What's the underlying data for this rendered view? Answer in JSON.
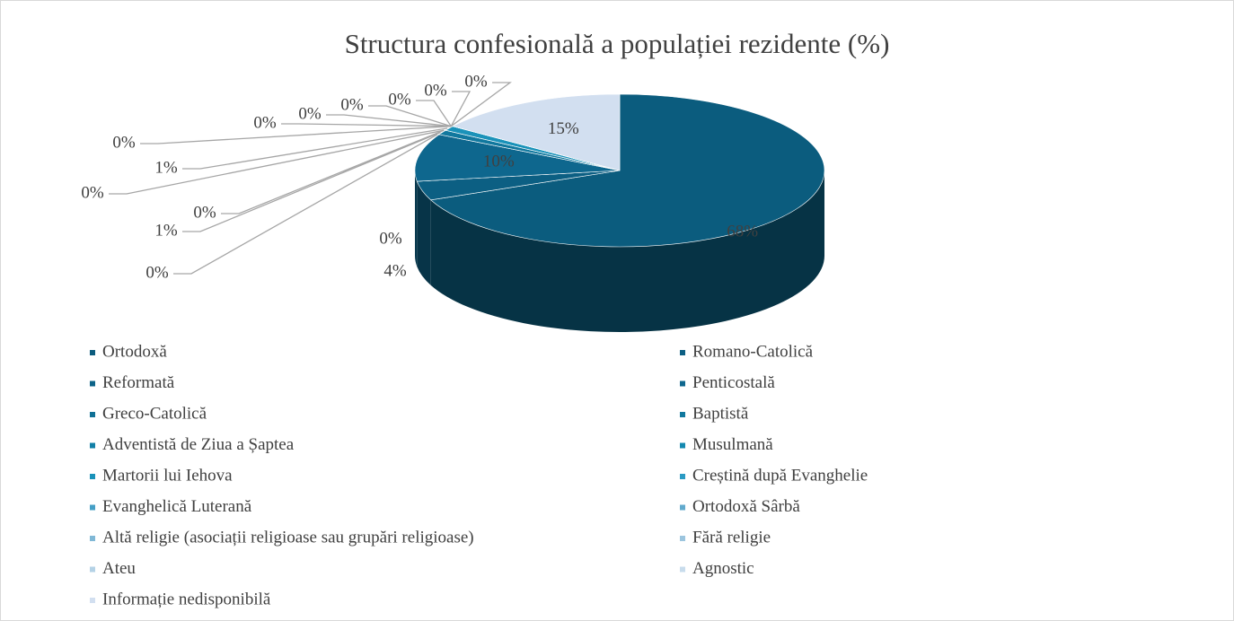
{
  "chart_data": {
    "type": "pie3d",
    "title": "Structura confesională a populației rezidente (%)",
    "categories": [
      "Ortodoxă",
      "Romano-Catolică",
      "Reformată",
      "Penticostală",
      "Greco-Catolică",
      "Baptistă",
      "Adventistă de Ziua a Șaptea",
      "Musulmană",
      "Martorii lui Iehova",
      "Creștină după Evanghelie",
      "Evanghelică Luterană",
      "Ortodoxă Sârbă",
      "Altă religie (asociații religioase sau grupări religioase)",
      "Fără religie",
      "Ateu",
      "Agnostic",
      "Informație nedisponibilă"
    ],
    "values": [
      68,
      4,
      0,
      10,
      0,
      1,
      0,
      0,
      1,
      0,
      0,
      0,
      0,
      0,
      0,
      0,
      15
    ],
    "value_labels": [
      "68%",
      "4%",
      "0%",
      "10%",
      "0%",
      "1%",
      "0%",
      "0%",
      "1%",
      "0%",
      "0%",
      "0%",
      "0%",
      "0%",
      "0%",
      "0%",
      "15%"
    ],
    "colors": [
      "#0b5c7e",
      "#0c5f83",
      "#0d6388",
      "#0e678e",
      "#107095",
      "#11789e",
      "#1280a7",
      "#1489b0",
      "#1a92b9",
      "#2b9ac3",
      "#459fc6",
      "#62aacd",
      "#80b8d6",
      "#9cc5de",
      "#b4d2e6",
      "#c8dcec",
      "#d2dff0"
    ],
    "legend": "bottom"
  }
}
